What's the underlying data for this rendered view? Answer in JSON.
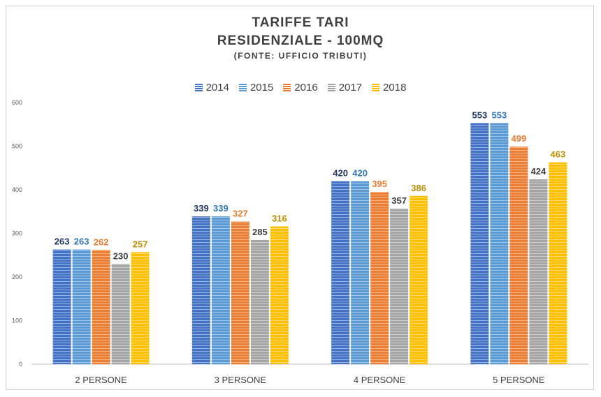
{
  "chart_data": {
    "type": "bar",
    "title_lines": [
      "TARIFFE TARI",
      "RESIDENZIALE - 100MQ",
      "(FONTE: UFFICIO TRIBUTI)"
    ],
    "categories": [
      "2 PERSONE",
      "3 PERSONE",
      "4 PERSONE",
      "5 PERSONE"
    ],
    "series": [
      {
        "name": "2014",
        "color": "#4472C4",
        "label_color": "#1F3864",
        "values": [
          263,
          339,
          420,
          553
        ]
      },
      {
        "name": "2015",
        "color": "#5B9BD5",
        "label_color": "#2E75B6",
        "values": [
          263,
          339,
          420,
          553
        ]
      },
      {
        "name": "2016",
        "color": "#ED7D31",
        "label_color": "#ED7D31",
        "values": [
          262,
          327,
          395,
          499
        ]
      },
      {
        "name": "2017",
        "color": "#A5A5A5",
        "label_color": "#404040",
        "values": [
          230,
          285,
          357,
          424
        ]
      },
      {
        "name": "2018",
        "color": "#FFC000",
        "label_color": "#BF9000",
        "values": [
          257,
          316,
          386,
          463
        ]
      }
    ],
    "yticks": [
      0,
      100,
      200,
      300,
      400,
      500,
      600
    ],
    "ylim": [
      0,
      600
    ],
    "legend_position": "top-center",
    "grid": false,
    "bar_style": "horizontal-striped"
  }
}
